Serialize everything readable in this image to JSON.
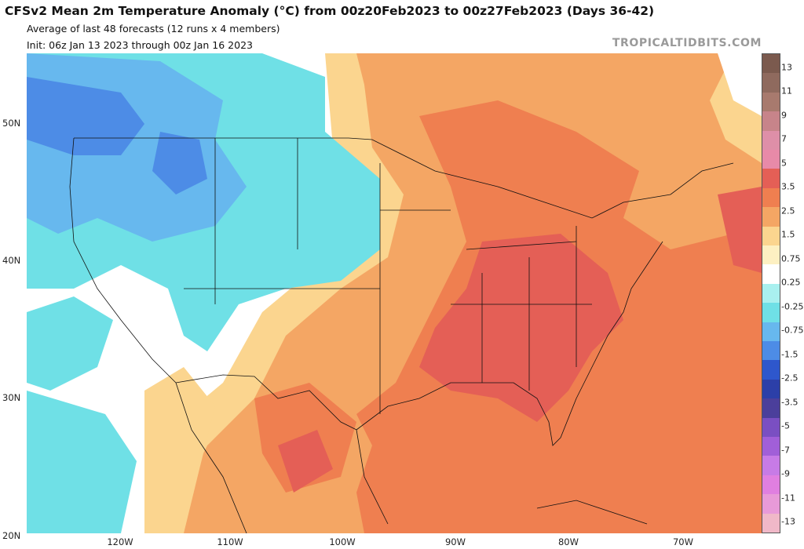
{
  "header": {
    "title": "CFSv2 Mean 2m Temperature Anomaly (°C) from 00z20Feb2023 to 00z27Feb2023 (Days 36-42)",
    "subtitle": "Average of last 48 forecasts (12 runs x 4 members)",
    "init": "Init: 06z Jan 13 2023 through 00z Jan 16 2023",
    "brand": "TROPICALTIDBITS.COM"
  },
  "axes": {
    "lat": [
      "50N",
      "40N",
      "30N",
      "20N"
    ],
    "lon": [
      "120W",
      "110W",
      "100W",
      "90W",
      "80W",
      "70W"
    ]
  },
  "colorbar": {
    "labels": [
      "13",
      "11",
      "9",
      "7",
      "5",
      "3.5",
      "2.5",
      "1.5",
      "0.75",
      "0.25",
      "-0.25",
      "-0.75",
      "-1.5",
      "-2.5",
      "-3.5",
      "-5",
      "-7",
      "-9",
      "-11",
      "-13"
    ],
    "colors": [
      "#7b5a4e",
      "#8f6a5e",
      "#a87a6e",
      "#c7848a",
      "#de8fa8",
      "#e88aa8",
      "#e45f56",
      "#ef7f50",
      "#f4a664",
      "#fbd58f",
      "#fdf0c2",
      "#ffffff",
      "#a9f0ef",
      "#6fe0e6",
      "#67b8ee",
      "#4d8ce6",
      "#2e57cc",
      "#2c3fa8",
      "#4b3f9b",
      "#7a4fc2",
      "#a15fd8",
      "#c77be6",
      "#e07fe0",
      "#e89ad8",
      "#f0b8c8"
    ]
  },
  "colors": {
    "warm_dark": "#e45f56",
    "warm": "#ef7f50",
    "warm_light": "#f4a664",
    "warm_pale": "#fbd58f",
    "cool": "#6fe0e6",
    "cool_dark": "#67b8ee",
    "cool_deep": "#4d8ce6"
  }
}
